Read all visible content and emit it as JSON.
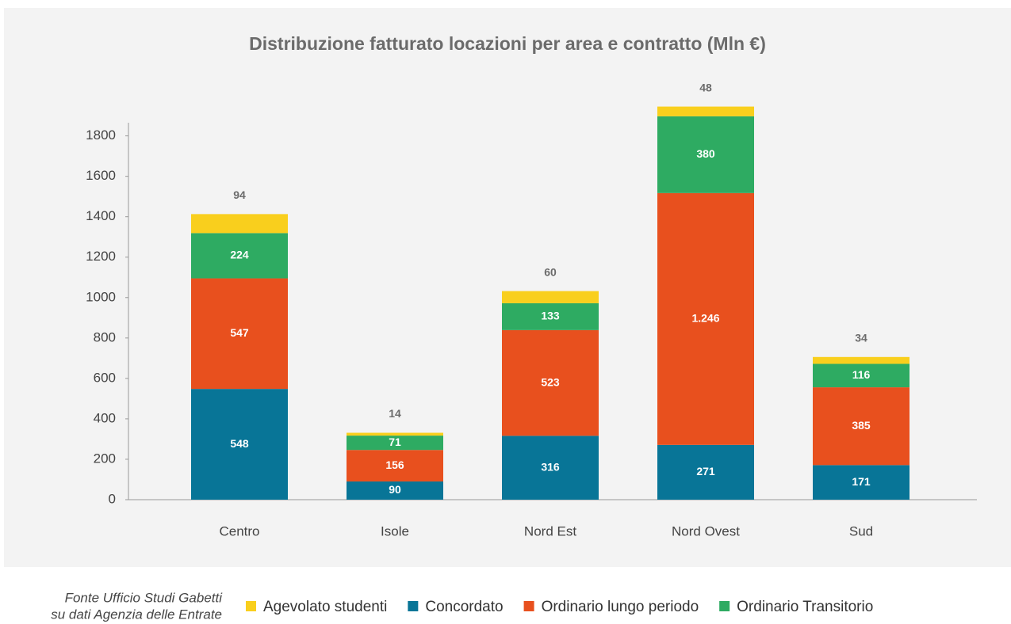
{
  "chart_data": {
    "type": "stacked_bar",
    "title": "Distribuzione fatturato locazioni per area e contratto (Mln €)",
    "categories": [
      "Centro",
      "Isole",
      "Nord Est",
      "Nord Ovest",
      "Sud"
    ],
    "series": [
      {
        "name": "Concordato",
        "color": "#087597",
        "values": [
          548,
          90,
          316,
          271,
          171
        ]
      },
      {
        "name": "Ordinario lungo periodo",
        "color": "#e8501e",
        "values": [
          547,
          156,
          523,
          1246,
          385
        ],
        "value_labels": [
          "547",
          "156",
          "523",
          "1.246",
          "385"
        ]
      },
      {
        "name": "Ordinario Transitorio",
        "color": "#2eab62",
        "values": [
          224,
          71,
          133,
          380,
          116
        ]
      },
      {
        "name": "Agevolato studenti",
        "color": "#f9cf1d",
        "values": [
          94,
          14,
          60,
          48,
          34
        ]
      }
    ],
    "ylim": [
      0,
      1865
    ],
    "yticks": [
      0,
      200,
      400,
      600,
      800,
      1000,
      1200,
      1400,
      1600,
      1800
    ],
    "grid": false,
    "legend": "bottom",
    "source": [
      "Fonte Ufficio Studi Gabetti",
      "su dati Agenzia delle Entrate"
    ]
  }
}
